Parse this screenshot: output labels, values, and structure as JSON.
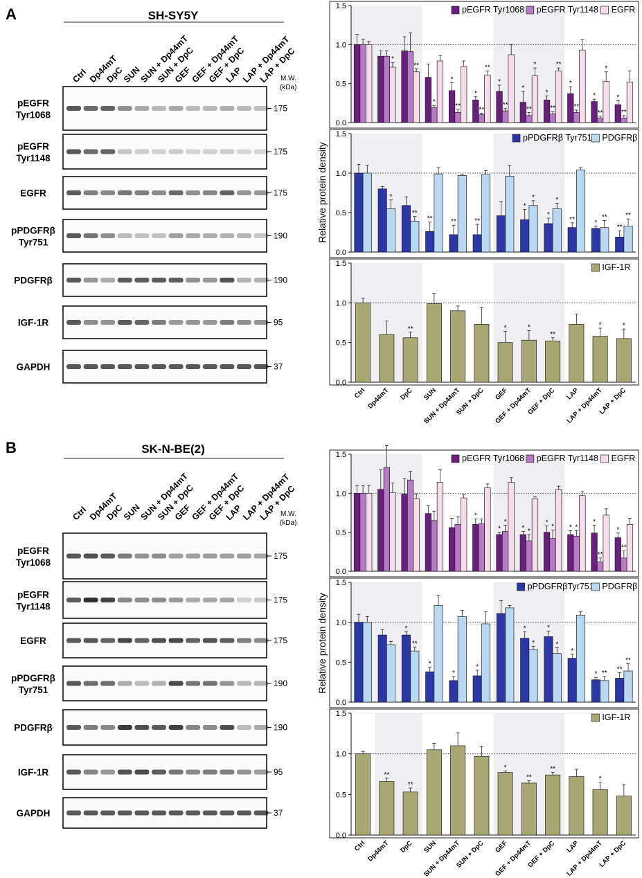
{
  "lanes": [
    "Ctrl",
    "Dp44mT",
    "DpC",
    "SUN",
    "SUN + Dp44mT",
    "SUN + DpC",
    "GEF",
    "GEF + Dp44mT",
    "GEF + DpC",
    "LAP",
    "LAP + Dp44mT",
    "LAP + DpC"
  ],
  "mw_label": [
    "M.W.",
    "(kDa)"
  ],
  "y_axis_label": "Relative protein density",
  "colors": {
    "pEGFR_Tyr1068": "#6b1e7e",
    "pEGFR_Tyr1148": "#b57bc3",
    "EGFR": "#f6dcec",
    "pPDGFRb": "#2a37a5",
    "PDGFRb": "#b9d8f1",
    "IGF1R": "#a9a774",
    "shade": "#efeff2"
  },
  "panels": [
    {
      "letter": "A",
      "cell_line": "SH-SY5Y",
      "blots": [
        {
          "label": [
            "pEGFR",
            "Tyr1068"
          ],
          "mw": "175"
        },
        {
          "label": [
            "pEGFR",
            "Tyr1148"
          ],
          "mw": "175"
        },
        {
          "label": [
            "EGFR"
          ],
          "mw": "175"
        },
        {
          "label": [
            "pPDGFRβ",
            "Tyr751"
          ],
          "mw": "190"
        },
        {
          "label": [
            "PDGFRβ"
          ],
          "mw": "190"
        },
        {
          "label": [
            "IGF-1R"
          ],
          "mw": "95"
        },
        {
          "label": [
            "GAPDH"
          ],
          "mw": "37"
        }
      ],
      "chart_data": [
        {
          "type": "bar",
          "ylim": [
            0,
            1.5
          ],
          "yticks": [
            "0.0",
            "0.5",
            "1.0",
            "1.5"
          ],
          "shaded": [
            [
              0,
              2
            ],
            [
              6,
              8
            ]
          ],
          "legend": [
            "pEGFR Tyr1068",
            "pEGFR Tyr1148",
            "EGFR"
          ],
          "series": [
            {
              "name": "pEGFR Tyr1068",
              "color_key": "pEGFR_Tyr1068",
              "values": [
                1.0,
                0.85,
                0.92,
                0.58,
                0.41,
                0.29,
                0.4,
                0.26,
                0.29,
                0.37,
                0.27,
                0.23
              ],
              "errors": [
                0.13,
                0.07,
                0.18,
                0.17,
                0.1,
                0.04,
                0.08,
                0.14,
                0.05,
                0.09,
                0.03,
                0.05
              ],
              "stars": [
                "",
                "",
                "",
                "",
                "*",
                "*",
                "*",
                "*",
                "*",
                "*",
                "*",
                "*"
              ]
            },
            {
              "name": "pEGFR Tyr1148",
              "color_key": "pEGFR_Tyr1148",
              "values": [
                1.0,
                0.85,
                0.91,
                0.19,
                0.13,
                0.1,
                0.15,
                0.09,
                0.11,
                0.13,
                0.06,
                0.06
              ],
              "errors": [
                0.07,
                0.07,
                0.24,
                0.03,
                0.04,
                0.02,
                0.03,
                0.04,
                0.03,
                0.03,
                0.02,
                0.03
              ],
              "stars": [
                "",
                "",
                "",
                "*",
                "**",
                "**",
                "**",
                "**",
                "**",
                "**",
                "**",
                "**"
              ]
            },
            {
              "name": "EGFR",
              "color_key": "EGFR",
              "values": [
                1.0,
                0.71,
                0.65,
                0.79,
                0.72,
                0.61,
                0.87,
                0.6,
                0.66,
                0.93,
                0.53,
                0.52
              ],
              "errors": [
                0.04,
                0.06,
                0.04,
                0.07,
                0.07,
                0.05,
                0.13,
                0.1,
                0.04,
                0.13,
                0.12,
                0.14
              ],
              "stars": [
                "",
                "*",
                "**",
                "",
                "",
                "**",
                "",
                "*",
                "**",
                "",
                "*",
                ""
              ]
            }
          ]
        },
        {
          "type": "bar",
          "ylim": [
            0,
            1.5
          ],
          "yticks": [
            "0.0",
            "0.5",
            "1.0",
            "1.5"
          ],
          "shaded": [
            [
              0,
              2
            ],
            [
              6,
              8
            ]
          ],
          "legend": [
            "pPDGFRβ Tyr751",
            "PDGFRβ"
          ],
          "series": [
            {
              "name": "pPDGFRβ Tyr751",
              "color_key": "pPDGFRb",
              "values": [
                1.0,
                0.8,
                0.59,
                0.26,
                0.22,
                0.22,
                0.46,
                0.41,
                0.36,
                0.31,
                0.3,
                0.19
              ],
              "errors": [
                0.11,
                0.03,
                0.11,
                0.12,
                0.12,
                0.13,
                0.18,
                0.13,
                0.07,
                0.06,
                0.03,
                0.08
              ],
              "stars": [
                "",
                "",
                "",
                "**",
                "**",
                "**",
                "",
                "*",
                "*",
                "**",
                "*",
                "**"
              ]
            },
            {
              "name": "PDGFRβ",
              "color_key": "PDGFRb",
              "values": [
                1.0,
                0.55,
                0.39,
                0.99,
                0.97,
                0.98,
                0.96,
                0.59,
                0.55,
                1.04,
                0.31,
                0.33
              ],
              "errors": [
                0.1,
                0.11,
                0.06,
                0.08,
                0.01,
                0.05,
                0.14,
                0.06,
                0.07,
                0.03,
                0.09,
                0.09
              ],
              "stars": [
                "",
                "*",
                "**",
                "",
                "",
                "",
                "",
                "*",
                "*",
                "",
                "**",
                "**"
              ]
            }
          ]
        },
        {
          "type": "bar",
          "ylim": [
            0,
            1.5
          ],
          "yticks": [
            "0.0",
            "0.5",
            "1.0",
            "1.5"
          ],
          "shaded": [
            [
              0,
              2
            ],
            [
              6,
              8
            ]
          ],
          "legend": [
            "IGF-1R"
          ],
          "series": [
            {
              "name": "IGF-1R",
              "color_key": "IGF1R",
              "values": [
                1.0,
                0.6,
                0.56,
                0.99,
                0.9,
                0.73,
                0.5,
                0.53,
                0.52,
                0.73,
                0.58,
                0.55
              ],
              "errors": [
                0.06,
                0.17,
                0.07,
                0.13,
                0.06,
                0.21,
                0.14,
                0.12,
                0.04,
                0.13,
                0.1,
                0.12
              ],
              "stars": [
                "",
                "",
                "**",
                "",
                "",
                "",
                "*",
                "*",
                "**",
                "",
                "*",
                "*"
              ]
            }
          ]
        }
      ]
    },
    {
      "letter": "B",
      "cell_line": "SK-N-BE(2)",
      "blots": [
        {
          "label": [
            "pEGFR",
            "Tyr1068"
          ],
          "mw": "175"
        },
        {
          "label": [
            "pEGFR",
            "Tyr1148"
          ],
          "mw": "175"
        },
        {
          "label": [
            "EGFR"
          ],
          "mw": "175"
        },
        {
          "label": [
            "pPDGFRβ",
            "Tyr751"
          ],
          "mw": "190"
        },
        {
          "label": [
            "PDGFRβ"
          ],
          "mw": "190"
        },
        {
          "label": [
            "IGF-1R"
          ],
          "mw": "95"
        },
        {
          "label": [
            "GAPDH"
          ],
          "mw": "37"
        }
      ],
      "chart_data": [
        {
          "type": "bar",
          "ylim": [
            0,
            1.5
          ],
          "yticks": [
            "0.0",
            "0.5",
            "1.0",
            "1.5"
          ],
          "shaded": [
            [
              0,
              2
            ],
            [
              6,
              8
            ]
          ],
          "legend": [
            "pEGFR Tyr1068",
            "pEGFR Tyr1148",
            "EGFR"
          ],
          "series": [
            {
              "name": "pEGFR Tyr1068",
              "color_key": "pEGFR_Tyr1068",
              "values": [
                1.0,
                1.05,
                0.99,
                0.74,
                0.56,
                0.6,
                0.47,
                0.47,
                0.5,
                0.47,
                0.49,
                0.43
              ],
              "errors": [
                0.1,
                0.25,
                0.2,
                0.1,
                0.12,
                0.07,
                0.03,
                0.04,
                0.08,
                0.05,
                0.1,
                0.06
              ],
              "stars": [
                "",
                "",
                "",
                "",
                "",
                "*",
                "*",
                "*",
                "*",
                "*",
                "*",
                "*"
              ]
            },
            {
              "name": "pEGFR Tyr1148",
              "color_key": "pEGFR_Tyr1148",
              "values": [
                1.0,
                1.33,
                1.17,
                0.65,
                0.6,
                0.61,
                0.51,
                0.39,
                0.42,
                0.45,
                0.12,
                0.17
              ],
              "errors": [
                0.1,
                0.28,
                0.11,
                0.12,
                0.1,
                0.06,
                0.08,
                0.08,
                0.11,
                0.07,
                0.05,
                0.09
              ],
              "stars": [
                "",
                "",
                "",
                "",
                "",
                "",
                "*",
                "*",
                "*",
                "*",
                "**",
                "**"
              ]
            },
            {
              "name": "EGFR",
              "color_key": "EGFR",
              "values": [
                1.0,
                1.01,
                0.93,
                1.14,
                0.94,
                1.07,
                1.14,
                0.93,
                1.05,
                0.97,
                0.72,
                0.6
              ],
              "errors": [
                0.1,
                0.12,
                0.06,
                0.16,
                0.04,
                0.05,
                0.06,
                0.03,
                0.04,
                0.05,
                0.08,
                0.08
              ],
              "stars": [
                "",
                "",
                "",
                "",
                "",
                "",
                "",
                "",
                "",
                "",
                "",
                ""
              ]
            }
          ]
        },
        {
          "type": "bar",
          "ylim": [
            0,
            1.5
          ],
          "yticks": [
            "0.0",
            "0.5",
            "1.0",
            "1.5"
          ],
          "shaded": [
            [
              0,
              2
            ],
            [
              6,
              8
            ]
          ],
          "legend": [
            "pPDGFRβTyr751",
            "PDGFRβ"
          ],
          "series": [
            {
              "name": "pPDGFRβTyr751",
              "color_key": "pPDGFRb",
              "values": [
                1.0,
                0.84,
                0.84,
                0.38,
                0.27,
                0.33,
                1.11,
                0.8,
                0.82,
                0.55,
                0.28,
                0.3
              ],
              "errors": [
                0.1,
                0.07,
                0.04,
                0.06,
                0.05,
                0.07,
                0.16,
                0.08,
                0.07,
                0.05,
                0.03,
                0.07
              ],
              "stars": [
                "",
                "",
                "*",
                "*",
                "*",
                "*",
                "",
                "*",
                "*",
                "*",
                "*",
                "**"
              ]
            },
            {
              "name": "PDGFRβ",
              "color_key": "PDGFRb",
              "values": [
                1.0,
                0.72,
                0.64,
                1.21,
                1.07,
                0.98,
                1.18,
                0.66,
                0.61,
                1.09,
                0.27,
                0.39
              ],
              "errors": [
                0.07,
                0.04,
                0.05,
                0.12,
                0.08,
                0.15,
                0.03,
                0.04,
                0.07,
                0.04,
                0.05,
                0.09
              ],
              "stars": [
                "",
                "",
                "**",
                "",
                "",
                "",
                "",
                "*",
                "*",
                "",
                "**",
                "**"
              ]
            }
          ]
        },
        {
          "type": "bar",
          "ylim": [
            0,
            1.5
          ],
          "yticks": [
            "0.0",
            "0.5",
            "1.0",
            "1.5"
          ],
          "shaded": [
            [
              1,
              2
            ],
            [
              6,
              8
            ]
          ],
          "legend": [
            "IGF-1R"
          ],
          "series": [
            {
              "name": "IGF-1R",
              "color_key": "IGF1R",
              "values": [
                1.0,
                0.66,
                0.53,
                1.05,
                1.1,
                0.97,
                0.77,
                0.64,
                0.74,
                0.72,
                0.56,
                0.48
              ],
              "errors": [
                0.03,
                0.04,
                0.05,
                0.08,
                0.16,
                0.12,
                0.02,
                0.03,
                0.03,
                0.09,
                0.09,
                0.14
              ],
              "stars": [
                "",
                "**",
                "**",
                "",
                "",
                "",
                "*",
                "**",
                "**",
                "",
                "*",
                ""
              ]
            }
          ]
        }
      ]
    }
  ]
}
